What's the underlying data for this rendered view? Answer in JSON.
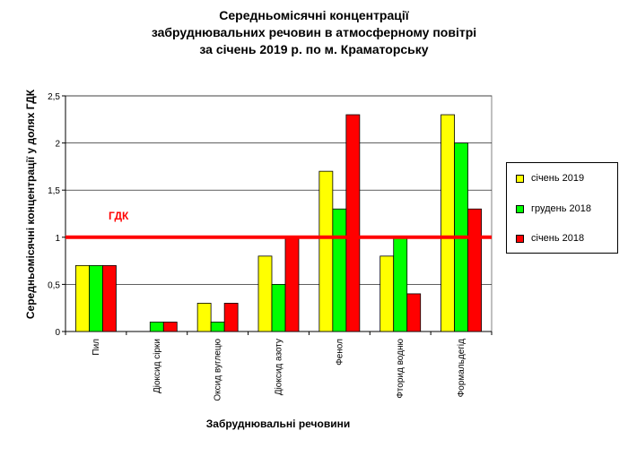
{
  "title_lines": [
    "Середньомісячні концентрації",
    "забруднювальних  речовин  в атмосферному повітрі",
    "за січень 2019 р. по м. Краматорську"
  ],
  "chart_data": {
    "type": "bar",
    "title": "Середньомісячні концентрації забруднювальних  речовин  в атмосферному повітрі за січень 2019 р. по м. Краматорську",
    "xlabel": "Забруднювальні речовини",
    "ylabel": "Середньомісячні концентрації у  долях ГДК",
    "ylim": [
      0,
      2.5
    ],
    "yticks": [
      "0",
      "0,5",
      "1",
      "1,5",
      "2",
      "2,5"
    ],
    "ytick_values": [
      0,
      0.5,
      1,
      1.5,
      2,
      2.5
    ],
    "grid": true,
    "legend_position": "right",
    "categories": [
      "Пил",
      "Діоксид сірки",
      "Оксид вуглецю",
      "Діоксид азоту",
      "Фенол",
      "Фторид водню",
      "Формальдегід"
    ],
    "series": [
      {
        "name": "січень 2019",
        "color": "#ffff00",
        "values": [
          0.7,
          0,
          0.3,
          0.8,
          1.7,
          0.8,
          2.3
        ]
      },
      {
        "name": "грудень 2018",
        "color": "#00ff00",
        "values": [
          0.7,
          0.1,
          0.1,
          0.5,
          1.3,
          1.0,
          2.0
        ]
      },
      {
        "name": "січень 2018",
        "color": "#ff0000",
        "values": [
          0.7,
          0.1,
          0.3,
          1.0,
          2.3,
          0.4,
          1.3
        ]
      }
    ],
    "reference_line": {
      "label": "ГДК",
      "value": 1,
      "color": "#ff0000"
    }
  }
}
